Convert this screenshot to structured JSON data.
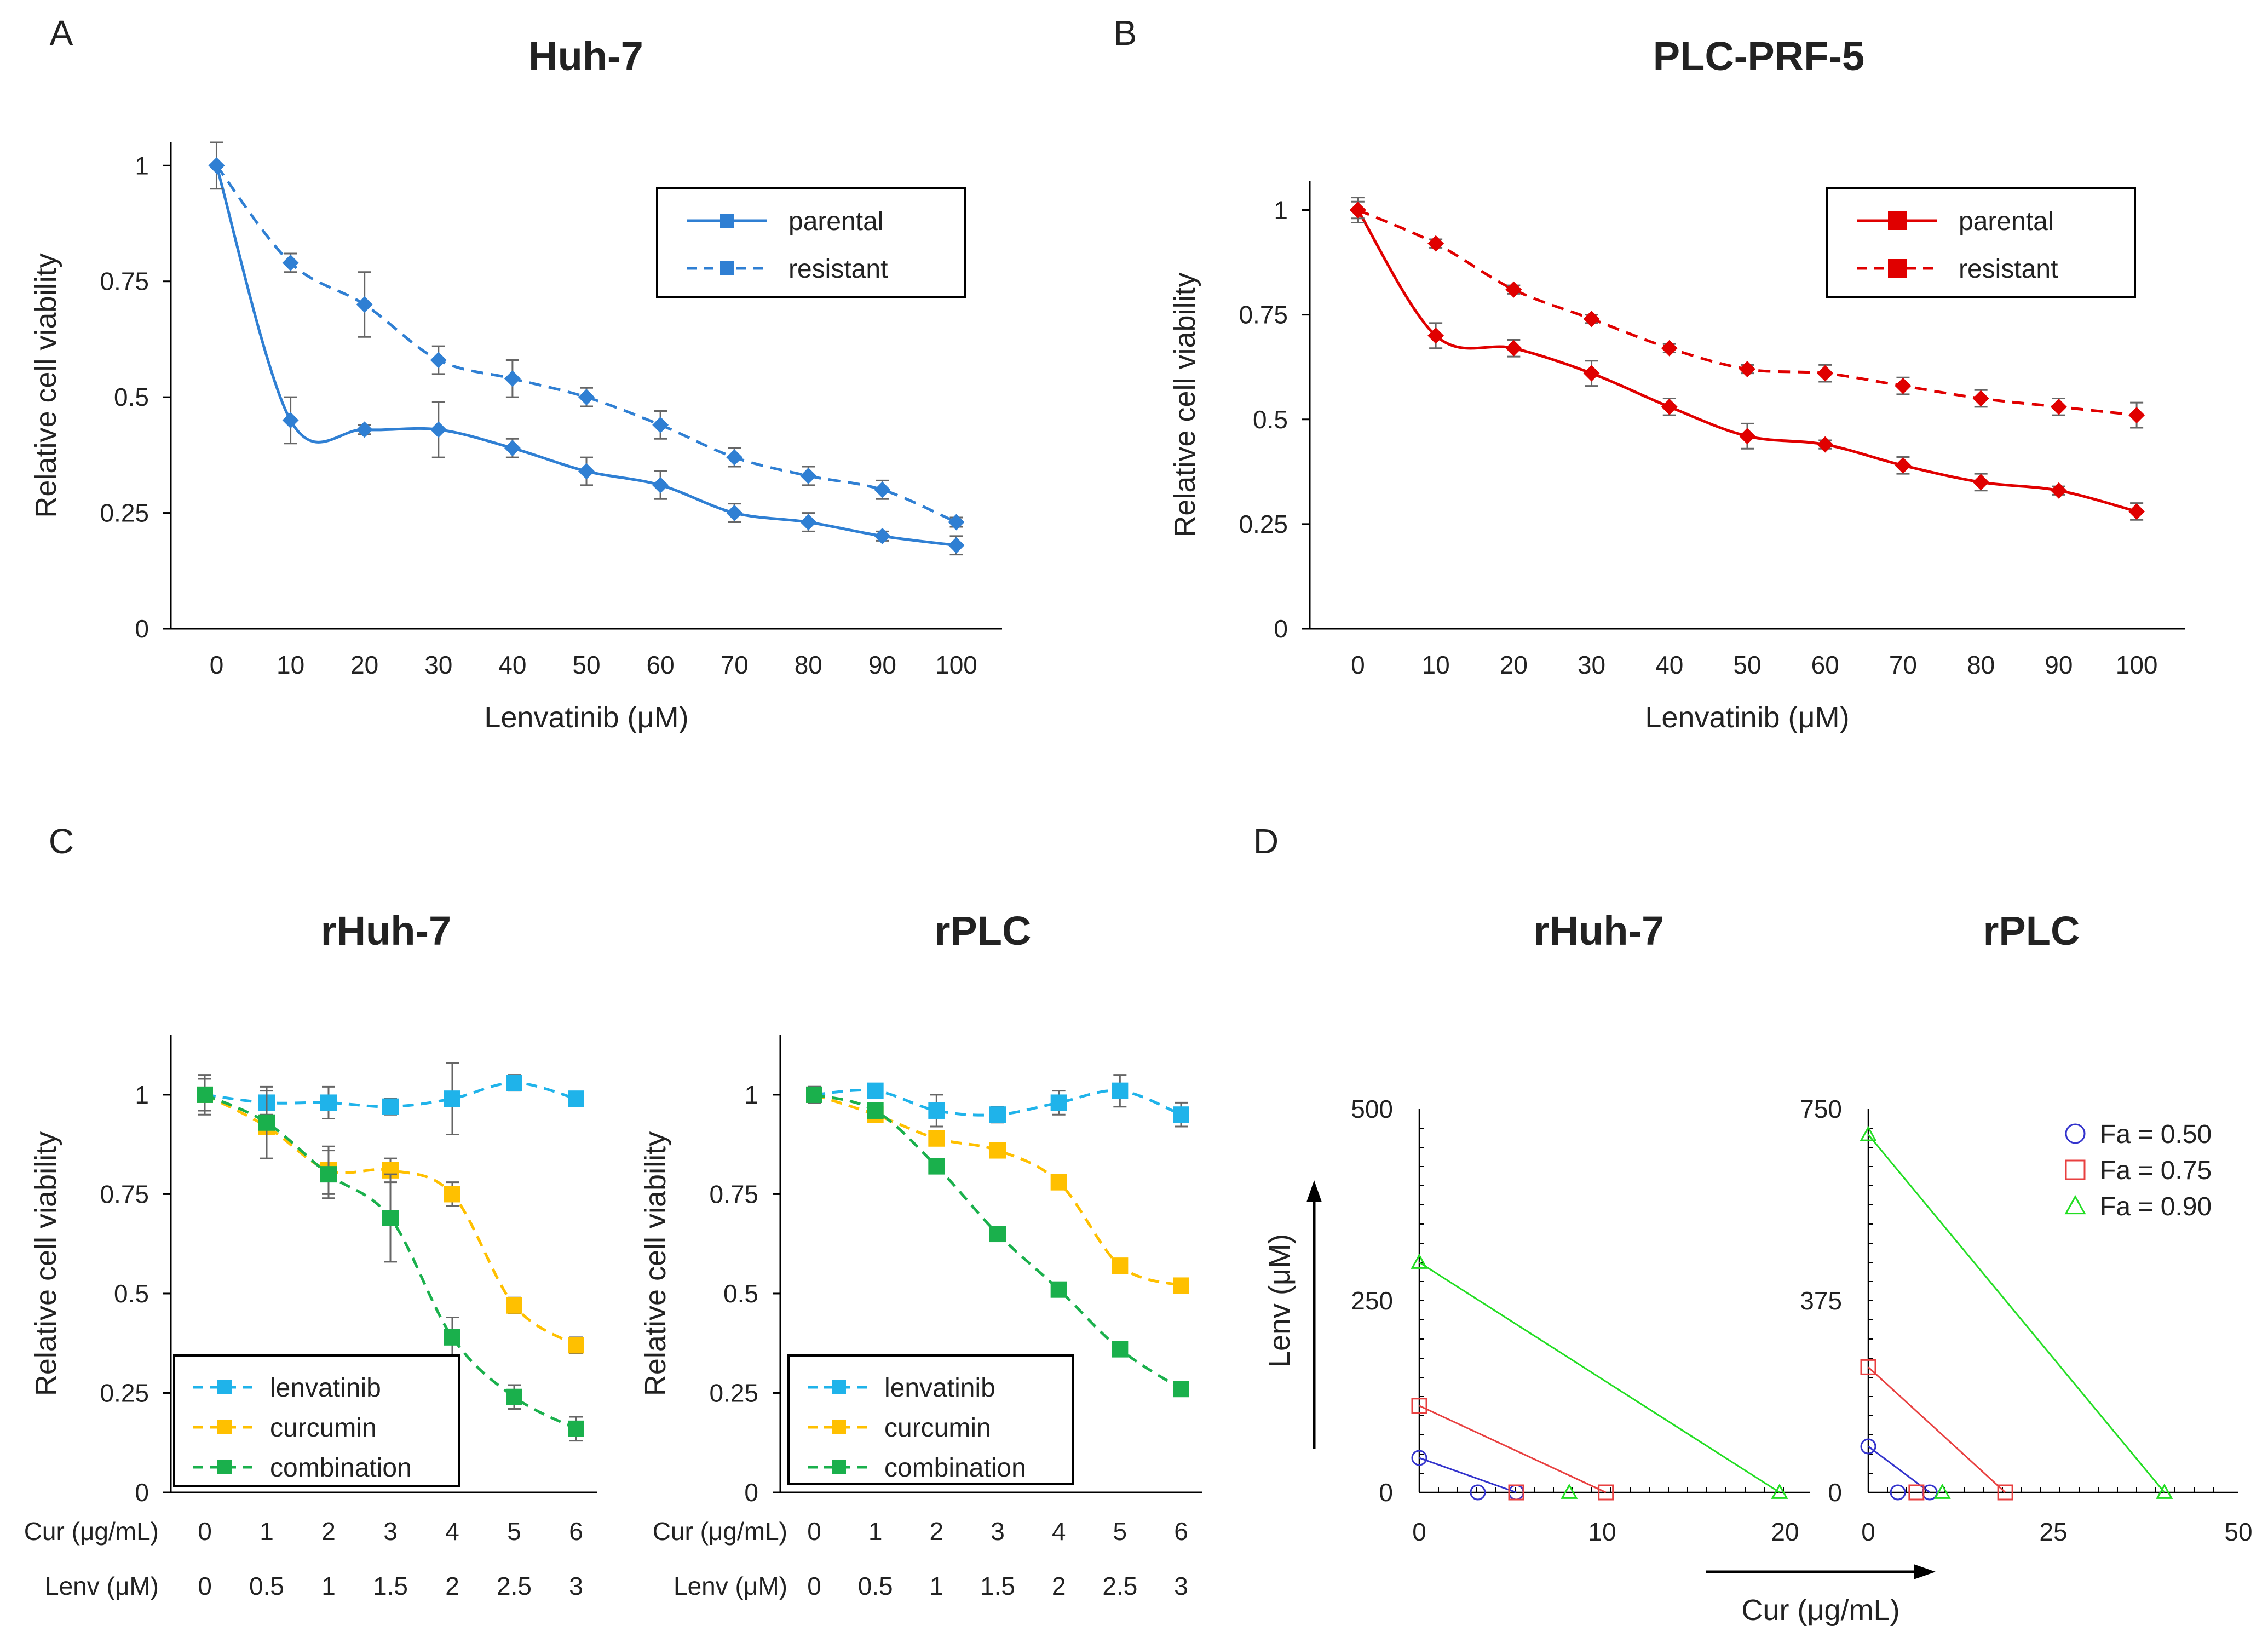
{
  "chart_data": [
    {
      "panel": "A",
      "type": "line",
      "title": "Huh-7",
      "xlabel": "Lenvatinib  (μM)",
      "ylabel": "Relative cell viability",
      "ylim": [
        0,
        1.05
      ],
      "yticks": [
        0,
        0.25,
        0.5,
        0.75,
        1
      ],
      "ytick_labels": [
        "0",
        "0.25",
        "0.5",
        "0.75",
        "1"
      ],
      "x": [
        0,
        10,
        20,
        30,
        40,
        50,
        60,
        70,
        80,
        90,
        100
      ],
      "x_labels": [
        "0",
        "10",
        "20",
        "30",
        "40",
        "50",
        "60",
        "70",
        "80",
        "90",
        "100"
      ],
      "legend_position": "top-right",
      "series": [
        {
          "name": "parental",
          "color": "#2f7fd3",
          "dash": "solid",
          "marker": "diamond",
          "values": [
            1.0,
            0.45,
            0.43,
            0.43,
            0.39,
            0.34,
            0.31,
            0.25,
            0.23,
            0.2,
            0.18
          ],
          "errors": [
            0.05,
            0.05,
            0.01,
            0.06,
            0.02,
            0.03,
            0.03,
            0.02,
            0.02,
            0.01,
            0.02
          ]
        },
        {
          "name": "resistant",
          "color": "#2f7fd3",
          "dash": "dashed",
          "marker": "diamond",
          "values": [
            1.0,
            0.79,
            0.7,
            0.58,
            0.54,
            0.5,
            0.44,
            0.37,
            0.33,
            0.3,
            0.23
          ],
          "errors": [
            0.05,
            0.02,
            0.07,
            0.03,
            0.04,
            0.02,
            0.03,
            0.02,
            0.02,
            0.02,
            0.01
          ]
        }
      ]
    },
    {
      "panel": "B",
      "type": "line",
      "title": "PLC-PRF-5",
      "xlabel": "Lenvatinib  (μM)",
      "ylabel": "Relative cell viability",
      "ylim": [
        0,
        1.07
      ],
      "yticks": [
        0,
        0.25,
        0.5,
        0.75,
        1
      ],
      "ytick_labels": [
        "0",
        "0.25",
        "0.5",
        "0.75",
        "1"
      ],
      "x": [
        0,
        10,
        20,
        30,
        40,
        50,
        60,
        70,
        80,
        90,
        100
      ],
      "x_labels": [
        "0",
        "10",
        "20",
        "30",
        "40",
        "50",
        "60",
        "70",
        "80",
        "90",
        "100"
      ],
      "legend_position": "top-right",
      "series": [
        {
          "name": "parental",
          "color": "#e00000",
          "dash": "solid",
          "marker": "diamond",
          "values": [
            1.0,
            0.7,
            0.67,
            0.61,
            0.53,
            0.46,
            0.44,
            0.39,
            0.35,
            0.33,
            0.28
          ],
          "errors": [
            0.03,
            0.03,
            0.02,
            0.03,
            0.02,
            0.03,
            0.01,
            0.02,
            0.02,
            0.01,
            0.02
          ]
        },
        {
          "name": "resistant",
          "color": "#e00000",
          "dash": "dashed",
          "marker": "diamond",
          "values": [
            1.0,
            0.92,
            0.81,
            0.74,
            0.67,
            0.62,
            0.61,
            0.58,
            0.55,
            0.53,
            0.51
          ],
          "errors": [
            0.02,
            0.01,
            0.01,
            0.01,
            0.01,
            0.01,
            0.02,
            0.02,
            0.02,
            0.02,
            0.03
          ]
        }
      ]
    },
    {
      "panel": "C",
      "type": "line",
      "title": "rHuh-7",
      "ylabel": "Relative cell viability",
      "ylim": [
        0,
        1.15
      ],
      "yticks": [
        0,
        0.25,
        0.5,
        0.75,
        1
      ],
      "ytick_labels": [
        "0",
        "0.25",
        "0.5",
        "0.75",
        "1"
      ],
      "x_row1_label": "Cur (μg/mL)",
      "x_row1": [
        "0",
        "1",
        "2",
        "3",
        "4",
        "5",
        "6"
      ],
      "x_row2_label": "Lenv (μM)",
      "x_row2": [
        "0",
        "0.5",
        "1",
        "1.5",
        "2",
        "2.5",
        "3"
      ],
      "legend_position": "bottom-left",
      "series": [
        {
          "name": "lenvatinib",
          "color": "#1fb3ea",
          "dash": "dashed",
          "marker": "square",
          "values": [
            1.0,
            0.98,
            0.98,
            0.97,
            0.99,
            1.03,
            0.99
          ],
          "errors": [
            0.05,
            0.03,
            0.04,
            0.02,
            0.09,
            0.02,
            0.01
          ]
        },
        {
          "name": "curcumin",
          "color": "#ffc000",
          "dash": "dashed",
          "marker": "square",
          "values": [
            1.0,
            0.92,
            0.81,
            0.81,
            0.75,
            0.47,
            0.37
          ],
          "errors": [
            0.04,
            0.02,
            0.06,
            0.03,
            0.03,
            0.02,
            0.02
          ]
        },
        {
          "name": "combination",
          "color": "#1ab04c",
          "dash": "dashed",
          "marker": "square",
          "values": [
            1.0,
            0.93,
            0.8,
            0.69,
            0.39,
            0.24,
            0.16
          ],
          "errors": [
            0.04,
            0.09,
            0.06,
            0.11,
            0.05,
            0.03,
            0.03
          ]
        }
      ]
    },
    {
      "panel": "C",
      "type": "line",
      "title": "rPLC",
      "ylabel": "Relative cell viability",
      "ylim": [
        0,
        1.15
      ],
      "yticks": [
        0,
        0.25,
        0.5,
        0.75,
        1
      ],
      "ytick_labels": [
        "0",
        "0.25",
        "0.5",
        "0.75",
        "1"
      ],
      "x_row1_label": "Cur (μg/mL)",
      "x_row1": [
        "0",
        "1",
        "2",
        "3",
        "4",
        "5",
        "6"
      ],
      "x_row2_label": "Lenv (μM)",
      "x_row2": [
        "0",
        "0.5",
        "1",
        "1.5",
        "2",
        "2.5",
        "3"
      ],
      "legend_position": "bottom-left",
      "series": [
        {
          "name": "lenvatinib",
          "color": "#1fb3ea",
          "dash": "dashed",
          "marker": "square",
          "values": [
            1.0,
            1.01,
            0.96,
            0.95,
            0.98,
            1.01,
            0.95
          ],
          "errors": [
            0.02,
            0.01,
            0.04,
            0.02,
            0.03,
            0.04,
            0.03
          ]
        },
        {
          "name": "curcumin",
          "color": "#ffc000",
          "dash": "dashed",
          "marker": "square",
          "values": [
            1.0,
            0.95,
            0.89,
            0.86,
            0.78,
            0.57,
            0.52
          ],
          "errors": [
            0.02,
            0.01,
            0.01,
            0.01,
            0.01,
            0.01,
            0.01
          ]
        },
        {
          "name": "combination",
          "color": "#1ab04c",
          "dash": "dashed",
          "marker": "square",
          "values": [
            1.0,
            0.96,
            0.82,
            0.65,
            0.51,
            0.36,
            0.26
          ],
          "errors": [
            0.02,
            0.01,
            0.01,
            0.01,
            0.01,
            0.01,
            0.01
          ]
        }
      ]
    },
    {
      "panel": "D",
      "type": "scatter",
      "title": "rHuh-7",
      "xlabel": "Cur (μg/mL)",
      "ylabel": "Lenv (μM)",
      "xlim": [
        0,
        20
      ],
      "ylim": [
        0,
        500
      ],
      "xticks": [
        0,
        10,
        20
      ],
      "yticks": [
        0,
        250,
        500
      ],
      "series": [
        {
          "name": "Fa = 0.50",
          "color": "#3333cc",
          "marker": "circle",
          "points": [
            [
              0,
              45
            ],
            [
              3.2,
              0
            ],
            [
              5.3,
              0
            ]
          ],
          "line": [
            [
              0,
              45
            ],
            [
              5.3,
              0
            ]
          ]
        },
        {
          "name": "Fa = 0.75",
          "color": "#e84040",
          "marker": "square",
          "points": [
            [
              0,
              113
            ],
            [
              10.2,
              0
            ],
            [
              5.3,
              0
            ]
          ],
          "line": [
            [
              0,
              113
            ],
            [
              10.2,
              0
            ]
          ]
        },
        {
          "name": "Fa = 0.90",
          "color": "#22dd22",
          "marker": "triangle",
          "points": [
            [
              0,
              300
            ],
            [
              19.7,
              0
            ],
            [
              8.2,
              0
            ]
          ],
          "line": [
            [
              0,
              300
            ],
            [
              19.7,
              0
            ]
          ]
        }
      ]
    },
    {
      "panel": "D",
      "type": "scatter",
      "title": "rPLC",
      "xlabel": "Cur (μg/mL)",
      "ylabel": "Lenv (μM)",
      "xlim": [
        0,
        50
      ],
      "ylim": [
        0,
        750
      ],
      "xticks": [
        0,
        25,
        50
      ],
      "yticks": [
        0,
        375,
        750
      ],
      "legend_position": "top-right",
      "series": [
        {
          "name": "Fa = 0.50",
          "color": "#3333cc",
          "marker": "circle",
          "points": [
            [
              0,
              90
            ],
            [
              4,
              0
            ],
            [
              8.3,
              0
            ]
          ],
          "line": [
            [
              0,
              90
            ],
            [
              8.3,
              0
            ]
          ]
        },
        {
          "name": "Fa = 0.75",
          "color": "#e84040",
          "marker": "square",
          "points": [
            [
              0,
              245
            ],
            [
              18.5,
              0
            ],
            [
              6.5,
              0
            ]
          ],
          "line": [
            [
              0,
              245
            ],
            [
              18.5,
              0
            ]
          ]
        },
        {
          "name": "Fa = 0.90",
          "color": "#22dd22",
          "marker": "triangle",
          "points": [
            [
              0,
              700
            ],
            [
              40,
              0
            ],
            [
              10,
              0
            ]
          ],
          "line": [
            [
              0,
              700
            ],
            [
              40,
              0
            ]
          ]
        }
      ]
    }
  ]
}
